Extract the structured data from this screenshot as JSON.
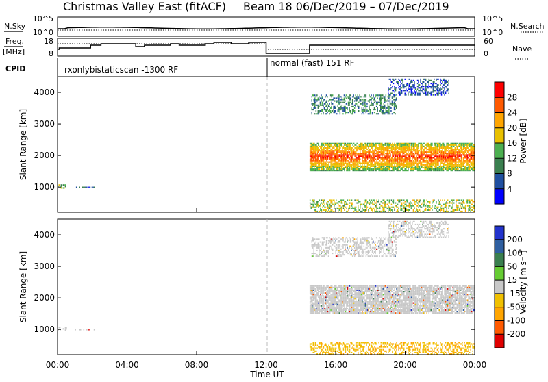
{
  "header": {
    "title_left": "Christmas Valley East (fitACF)",
    "title_right": "Beam 18  06/Dec/2019 – 07/Dec/2019"
  },
  "left_labels": {
    "nsky": "N.Sky",
    "freq": "Freq.",
    "mhz": "[MHz]",
    "cpid": "CPID"
  },
  "right_labels": {
    "nsearch": "N.Search",
    "nave": "Nave"
  },
  "noise_panel": {
    "left_ticks": [
      "10^5",
      "10^0"
    ],
    "right_ticks": [
      "10^5",
      "10^0"
    ]
  },
  "freq_panel": {
    "left_ticks": [
      "18",
      "8"
    ],
    "right_ticks": [
      "60",
      "0"
    ]
  },
  "cpid_panel": {
    "left_label": "rxonlybistaticscan -1300 RF",
    "right_label": "normal (fast) 151 RF"
  },
  "colors": {
    "power": [
      "#0000ff",
      "#1f4fa0",
      "#3a7f4f",
      "#4caf50",
      "#e8c000",
      "#ffa500",
      "#ff5a00",
      "#ff0000"
    ],
    "velocity": [
      "#e00000",
      "#ff5a00",
      "#ffa500",
      "#f0c000",
      "#c8c8c8",
      "#66cc33",
      "#3a7f4f",
      "#2f5fa0",
      "#2233cc"
    ],
    "ground_scatter": "#c8c8c8"
  },
  "power_colorbar": {
    "label": "Power [dB]",
    "ticks": [
      "4",
      "8",
      "12",
      "16",
      "20",
      "24",
      "28"
    ]
  },
  "velocity_colorbar": {
    "label": "Velocity [m s⁻¹]",
    "ticks": [
      "200",
      "100",
      "50",
      "15",
      "-15",
      "-50",
      "-100",
      "-200"
    ]
  },
  "chart_data": [
    {
      "type": "heatmap",
      "quantity": "Power",
      "ylabel": "Slant Range [km]",
      "ylim": [
        200,
        4500
      ],
      "yticks": [
        "1000",
        "2000",
        "3000",
        "4000"
      ],
      "xlim": [
        0,
        24
      ],
      "clim": [
        0,
        32
      ],
      "echo_regions": [
        {
          "t_start": 0.0,
          "t_end": 0.5,
          "range_min": 950,
          "range_max": 1050,
          "value": 14
        },
        {
          "t_start": 1.0,
          "t_end": 2.1,
          "range_min": 970,
          "range_max": 1010,
          "value": 8
        },
        {
          "t_start": 14.5,
          "t_end": 24.0,
          "range_min": 1500,
          "range_max": 2400,
          "value": 24
        },
        {
          "t_start": 14.6,
          "t_end": 19.5,
          "range_min": 3300,
          "range_max": 3900,
          "value": 10
        },
        {
          "t_start": 19.0,
          "t_end": 22.5,
          "range_min": 3900,
          "range_max": 4400,
          "value": 6
        },
        {
          "t_start": 14.5,
          "t_end": 24.0,
          "range_min": 200,
          "range_max": 600,
          "value": 16
        }
      ]
    },
    {
      "type": "heatmap",
      "quantity": "Velocity",
      "ylabel": "Slant Range [km]",
      "xlabel": "Time UT",
      "ylim": [
        200,
        4500
      ],
      "yticks": [
        "1000",
        "2000",
        "3000",
        "4000"
      ],
      "xlim": [
        0,
        24
      ],
      "xticks": [
        "00:00",
        "04:00",
        "08:00",
        "12:00",
        "16:00",
        "20:00",
        "00:00"
      ],
      "clim": [
        -250,
        250
      ],
      "echo_regions": [
        {
          "t_start": 0.0,
          "t_end": 0.5,
          "range_min": 950,
          "range_max": 1050,
          "value": 0
        },
        {
          "t_start": 1.0,
          "t_end": 2.1,
          "range_min": 970,
          "range_max": 1010,
          "value": 0
        },
        {
          "t_start": 14.5,
          "t_end": 24.0,
          "range_min": 1500,
          "range_max": 2400,
          "value": 0
        },
        {
          "t_start": 14.6,
          "t_end": 19.5,
          "range_min": 3300,
          "range_max": 3900,
          "value": 0
        },
        {
          "t_start": 19.0,
          "t_end": 22.5,
          "range_min": 3900,
          "range_max": 4400,
          "value": 0
        },
        {
          "t_start": 14.5,
          "t_end": 24.0,
          "range_min": 200,
          "range_max": 600,
          "value": -60
        }
      ]
    }
  ],
  "freq_series": {
    "name": "Freq.",
    "time": [
      0,
      0.1,
      1.9,
      2.5,
      4.5,
      5.0,
      6.5,
      7.0,
      8.5,
      9.0,
      10.0,
      11.0,
      12.0,
      14.5,
      24.0
    ],
    "mhz": [
      12,
      13,
      15,
      16,
      14,
      15,
      16,
      15,
      16,
      17,
      16,
      17,
      9,
      15,
      15
    ]
  },
  "time_markers": {
    "dashed_line_hours": 12,
    "cpid_change_hours": 12
  }
}
